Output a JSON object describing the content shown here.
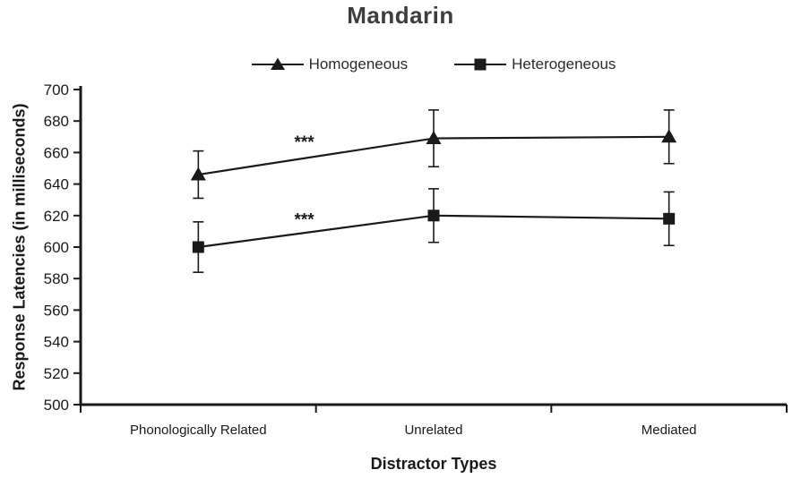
{
  "chart_data": {
    "type": "line",
    "title": "Mandarin",
    "xlabel": "Distractor Types",
    "ylabel": "Response Latencies (in milliseconds)",
    "categories": [
      "Phonologically Related",
      "Unrelated",
      "Mediated"
    ],
    "ylim": [
      500,
      700
    ],
    "ytick_step": 20,
    "grid": false,
    "legend_position": "top",
    "series": [
      {
        "name": "Homogeneous",
        "marker": "triangle",
        "values": [
          646,
          669,
          670
        ],
        "errors": [
          15,
          18,
          17
        ]
      },
      {
        "name": "Heterogeneous",
        "marker": "square",
        "values": [
          600,
          620,
          618
        ],
        "errors": [
          16,
          17,
          17
        ]
      }
    ],
    "annotations": [
      {
        "text": "***",
        "x": 0.45,
        "y": 663,
        "series": "Homogeneous"
      },
      {
        "text": "***",
        "x": 0.45,
        "y": 614,
        "series": "Heterogeneous"
      }
    ],
    "colors": {
      "line": "#1a1a1a",
      "text": "#1a1a1a",
      "title": "#3d3d3d"
    }
  }
}
